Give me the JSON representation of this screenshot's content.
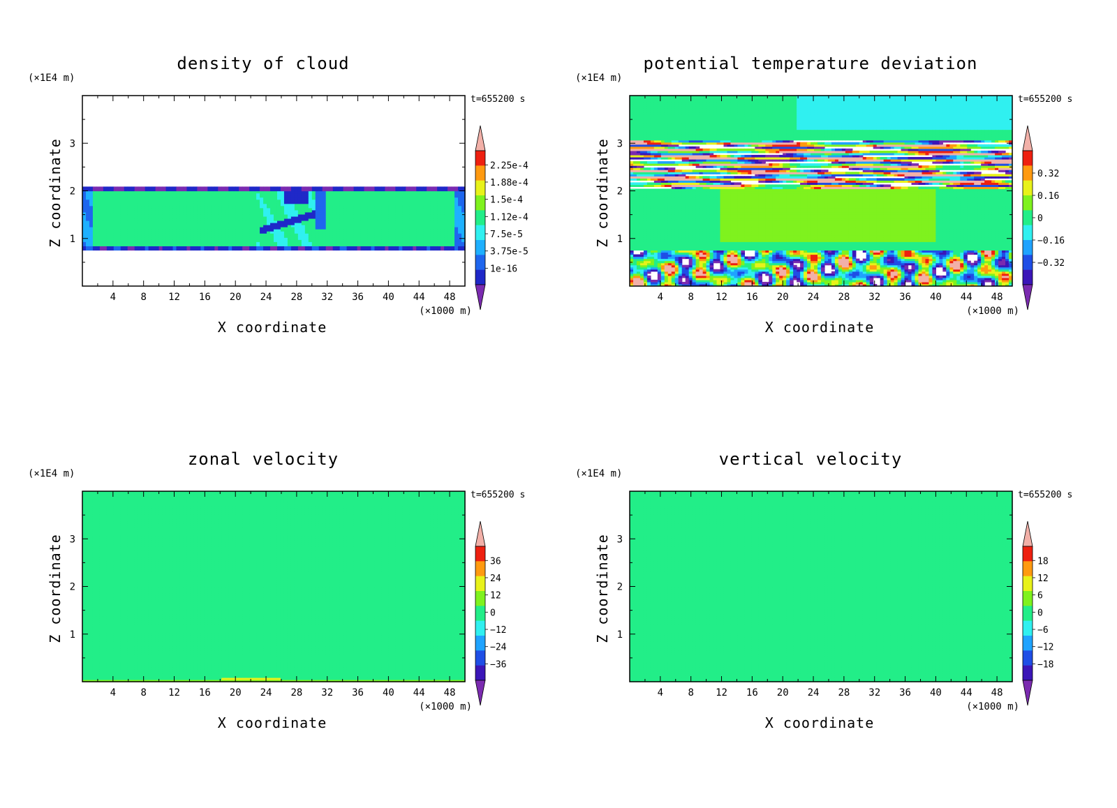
{
  "chart_data": [
    {
      "type": "heatmap",
      "title": "density of cloud",
      "xlabel": "X coordinate",
      "ylabel": "Z coordinate",
      "x_unit": "(×1000 m)",
      "y_unit": "(×1E4 m)",
      "time_label": "t=655200 s",
      "xlim": [
        0,
        50
      ],
      "ylim": [
        0,
        4
      ],
      "x_ticks": [
        "4",
        "8",
        "12",
        "16",
        "20",
        "24",
        "28",
        "32",
        "36",
        "40",
        "44",
        "48"
      ],
      "y_ticks": [
        "1",
        "2",
        "3"
      ],
      "colorbar": {
        "labels": [
          "2.25e-4",
          "1.88e-4",
          "1.5e-4",
          "1.12e-4",
          "7.5e-5",
          "3.75e-5",
          "1e-16"
        ]
      },
      "field": "cloud"
    },
    {
      "type": "heatmap",
      "title": "potential temperature deviation",
      "xlabel": "X coordinate",
      "ylabel": "Z coordinate",
      "x_unit": "(×1000 m)",
      "y_unit": "(×1E4 m)",
      "time_label": "t=655200 s",
      "xlim": [
        0,
        50
      ],
      "ylim": [
        0,
        4
      ],
      "x_ticks": [
        "4",
        "8",
        "12",
        "16",
        "20",
        "24",
        "28",
        "32",
        "36",
        "40",
        "44",
        "48"
      ],
      "y_ticks": [
        "1",
        "2",
        "3"
      ],
      "colorbar": {
        "labels": [
          "0.32",
          "0.16",
          "0",
          "−0.16",
          "−0.32"
        ]
      },
      "field": "theta"
    },
    {
      "type": "heatmap",
      "title": "zonal velocity",
      "xlabel": "X coordinate",
      "ylabel": "Z coordinate",
      "x_unit": "(×1000 m)",
      "y_unit": "(×1E4 m)",
      "time_label": "t=655200 s",
      "xlim": [
        0,
        50
      ],
      "ylim": [
        0,
        4
      ],
      "x_ticks": [
        "4",
        "8",
        "12",
        "16",
        "20",
        "24",
        "28",
        "32",
        "36",
        "40",
        "44",
        "48"
      ],
      "y_ticks": [
        "1",
        "2",
        "3"
      ],
      "colorbar": {
        "labels": [
          "36",
          "24",
          "12",
          "0",
          "−12",
          "−24",
          "−36"
        ]
      },
      "field": "zonal"
    },
    {
      "type": "heatmap",
      "title": "vertical velocity",
      "xlabel": "X coordinate",
      "ylabel": "Z coordinate",
      "x_unit": "(×1000 m)",
      "y_unit": "(×1E4 m)",
      "time_label": "t=655200 s",
      "xlim": [
        0,
        50
      ],
      "ylim": [
        0,
        4
      ],
      "x_ticks": [
        "4",
        "8",
        "12",
        "16",
        "20",
        "24",
        "28",
        "32",
        "36",
        "40",
        "44",
        "48"
      ],
      "y_ticks": [
        "1",
        "2",
        "3"
      ],
      "colorbar": {
        "labels": [
          "18",
          "12",
          "6",
          "0",
          "−6",
          "−12",
          "−18"
        ]
      },
      "field": "vertical"
    }
  ]
}
